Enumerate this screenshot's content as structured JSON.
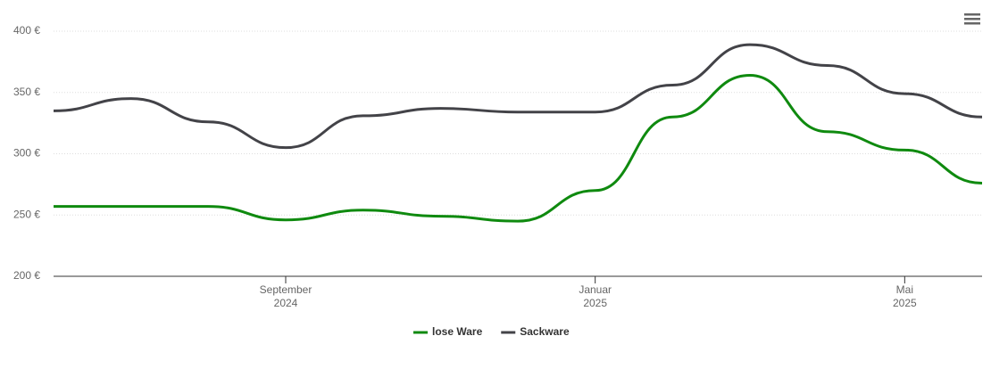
{
  "chart_data": {
    "type": "line",
    "x": [
      "2024-06",
      "2024-07",
      "2024-08",
      "2024-09",
      "2024-10",
      "2024-11",
      "2024-12",
      "2025-01",
      "2025-02",
      "2025-03",
      "2025-04",
      "2025-05",
      "2025-06"
    ],
    "series": [
      {
        "name": "lose Ware",
        "color": "#0f8a0f",
        "values": [
          257,
          257,
          257,
          246,
          254,
          249,
          245,
          270,
          330,
          364,
          318,
          303,
          276
        ]
      },
      {
        "name": "Sackware",
        "color": "#434348",
        "values": [
          335,
          345,
          326,
          305,
          331,
          337,
          334,
          334,
          356,
          389,
          372,
          349,
          330
        ]
      }
    ],
    "xlim": [
      "2024-06",
      "2025-06"
    ],
    "xticks": [
      {
        "value": "2024-09",
        "label": [
          "September",
          "2024"
        ]
      },
      {
        "value": "2025-01",
        "label": [
          "Januar",
          "2025"
        ]
      },
      {
        "value": "2025-05",
        "label": [
          "Mai",
          "2025"
        ]
      }
    ],
    "ylim": [
      200,
      400
    ],
    "yticks": [
      {
        "value": 200,
        "label": "200 €"
      },
      {
        "value": 250,
        "label": "250 €"
      },
      {
        "value": 300,
        "label": "300 €"
      },
      {
        "value": 350,
        "label": "350 €"
      },
      {
        "value": 400,
        "label": "400 €"
      }
    ],
    "grid": true,
    "legend": "bottom"
  }
}
